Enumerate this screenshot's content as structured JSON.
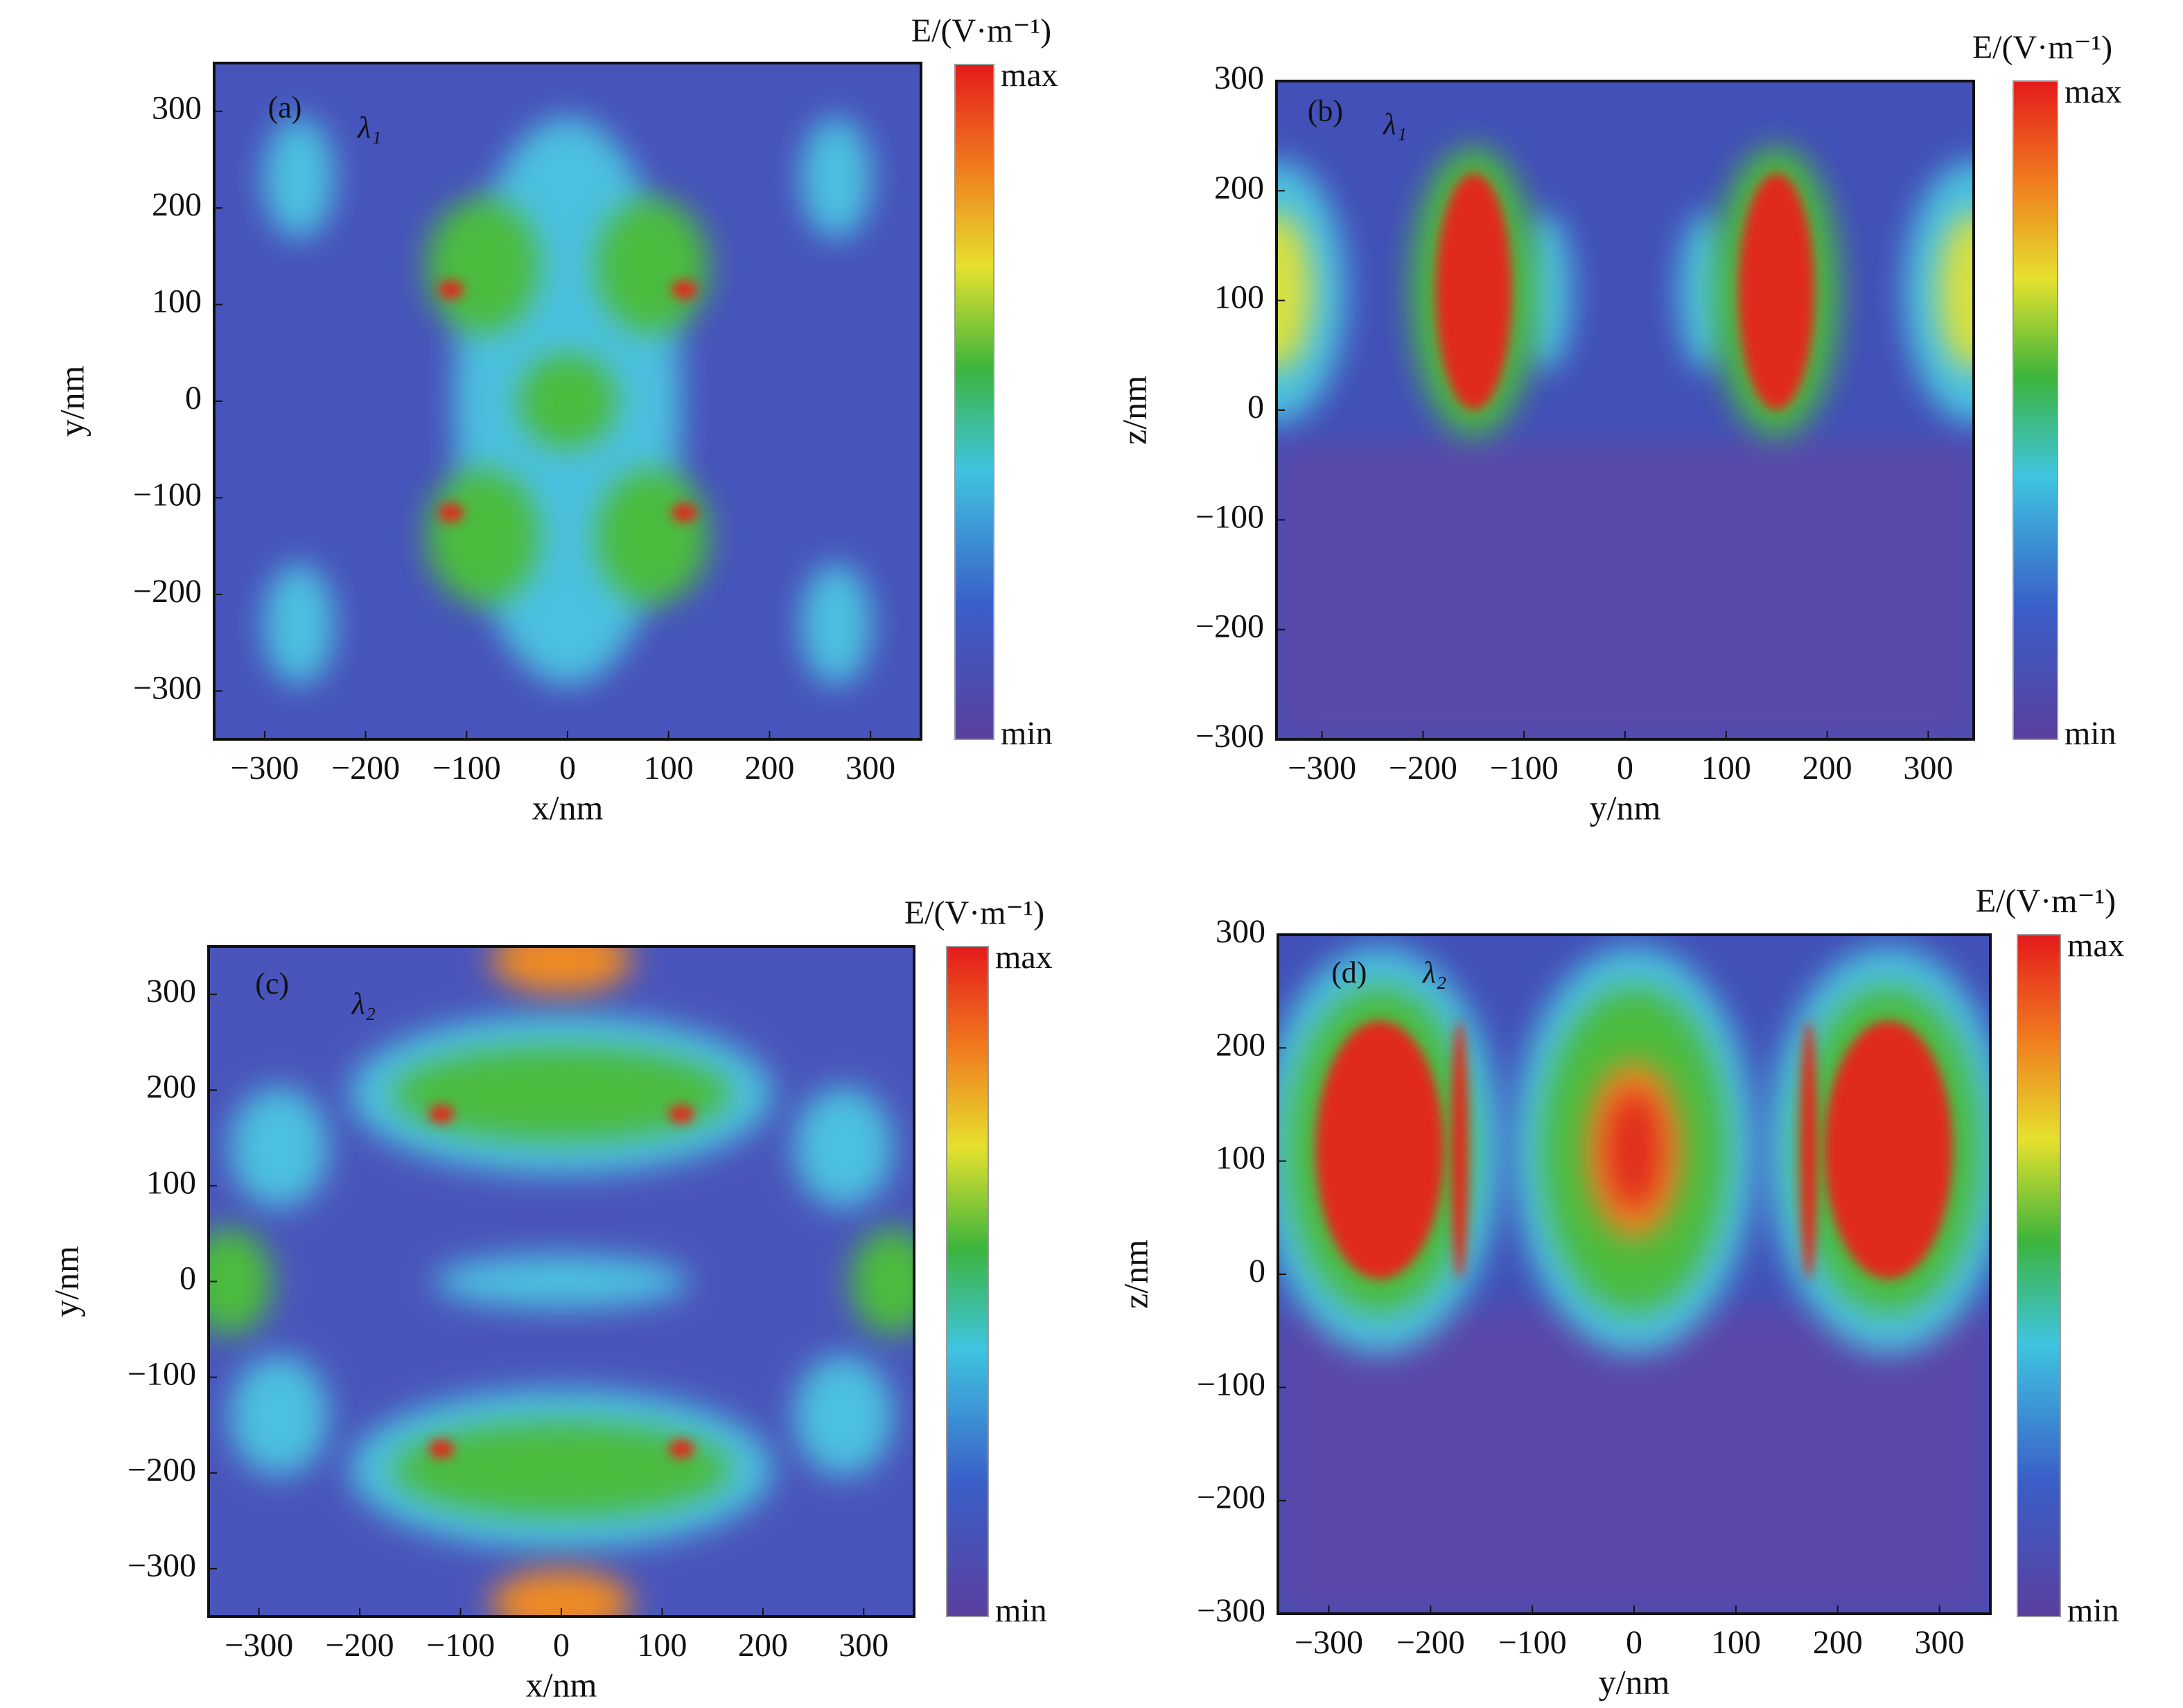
{
  "chart_data": [
    {
      "type": "heatmap",
      "panel_label": "(a)",
      "annotation": "λ₁",
      "xlabel": "x/nm",
      "ylabel": "y/nm",
      "xlim": [
        -350,
        350
      ],
      "ylim": [
        -350,
        350
      ],
      "xticks": [
        {
          "value": -300,
          "label": "−300"
        },
        {
          "value": -200,
          "label": "−200"
        },
        {
          "value": -100,
          "label": "−100"
        },
        0,
        100,
        200,
        300
      ],
      "yticks": [
        {
          "value": -300,
          "label": "−300"
        },
        {
          "value": -200,
          "label": "−200"
        },
        {
          "value": -100,
          "label": "−100"
        },
        0,
        100,
        200,
        300
      ],
      "colorbar": {
        "label": "E/(V·m⁻¹)",
        "max_label": "max",
        "min_label": "min"
      },
      "colormap": [
        "#e41a1c",
        "#f07a1e",
        "#e6e12e",
        "#3cb43c",
        "#3fc4e0",
        "#3a5fc8",
        "#5a3f9e"
      ]
    },
    {
      "type": "heatmap",
      "panel_label": "(b)",
      "annotation": "λ₁",
      "xlabel": "y/nm",
      "ylabel": "z/nm",
      "xlim": [
        -345,
        345
      ],
      "ylim": [
        -300,
        300
      ],
      "xticks": [
        {
          "value": -300,
          "label": "−300"
        },
        {
          "value": -200,
          "label": "−200"
        },
        {
          "value": -100,
          "label": "−100"
        },
        0,
        100,
        200,
        300
      ],
      "yticks": [
        {
          "value": -300,
          "label": "−300"
        },
        {
          "value": -200,
          "label": "−200"
        },
        {
          "value": -100,
          "label": "−100"
        },
        0,
        100,
        200,
        300
      ],
      "colorbar": {
        "label": "E/(V·m⁻¹)",
        "max_label": "max",
        "min_label": "min"
      },
      "colormap": [
        "#e41a1c",
        "#f07a1e",
        "#e6e12e",
        "#3cb43c",
        "#3fc4e0",
        "#3a5fc8",
        "#5a3f9e"
      ]
    },
    {
      "type": "heatmap",
      "panel_label": "(c)",
      "annotation": "λ₂",
      "xlabel": "x/nm",
      "ylabel": "y/nm",
      "xlim": [
        -350,
        350
      ],
      "ylim": [
        -350,
        350
      ],
      "xticks": [
        {
          "value": -300,
          "label": "−300"
        },
        {
          "value": -200,
          "label": "−200"
        },
        {
          "value": -100,
          "label": "−100"
        },
        0,
        100,
        200,
        300
      ],
      "yticks": [
        {
          "value": -300,
          "label": "−300"
        },
        {
          "value": -200,
          "label": "−200"
        },
        {
          "value": -100,
          "label": "−100"
        },
        0,
        100,
        200,
        300
      ],
      "colorbar": {
        "label": "E/(V·m⁻¹)",
        "max_label": "max",
        "min_label": "min"
      },
      "colormap": [
        "#e41a1c",
        "#f07a1e",
        "#e6e12e",
        "#3cb43c",
        "#3fc4e0",
        "#3a5fc8",
        "#5a3f9e"
      ]
    },
    {
      "type": "heatmap",
      "panel_label": "(d)",
      "annotation": "λ₂",
      "xlabel": "y/nm",
      "ylabel": "z/nm",
      "xlim": [
        -350,
        350
      ],
      "ylim": [
        -300,
        300
      ],
      "xticks": [
        {
          "value": -300,
          "label": "−300"
        },
        {
          "value": -200,
          "label": "−200"
        },
        {
          "value": -100,
          "label": "−100"
        },
        0,
        100,
        200,
        300
      ],
      "yticks": [
        {
          "value": -300,
          "label": "−300"
        },
        {
          "value": -200,
          "label": "−200"
        },
        {
          "value": -100,
          "label": "−100"
        },
        0,
        100,
        200,
        300
      ],
      "colorbar": {
        "label": "E/(V·m⁻¹)",
        "max_label": "max",
        "min_label": "min"
      },
      "colormap": [
        "#e41a1c",
        "#f07a1e",
        "#e6e12e",
        "#3cb43c",
        "#3fc4e0",
        "#3a5fc8",
        "#5a3f9e"
      ]
    }
  ]
}
